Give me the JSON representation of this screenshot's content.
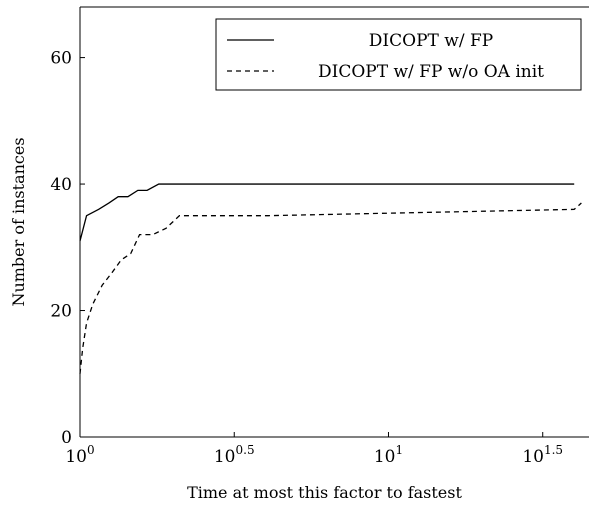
{
  "chart_data": {
    "type": "line",
    "title": "",
    "xlabel": "Time at most this factor to fastest",
    "ylabel": "Number of instances",
    "x_scale": "log10",
    "xlim": [
      1,
      44.67
    ],
    "ylim": [
      0,
      68
    ],
    "x_ticks": [
      {
        "value": 1,
        "base": "10",
        "exp": "0"
      },
      {
        "value": 3.1623,
        "base": "10",
        "exp": "0.5"
      },
      {
        "value": 10,
        "base": "10",
        "exp": "1"
      },
      {
        "value": 31.623,
        "base": "10",
        "exp": "1.5"
      }
    ],
    "y_ticks": [
      0,
      20,
      40,
      60
    ],
    "legend_position": "top-right",
    "series": [
      {
        "name": "DICOPT w/ FP",
        "style": "solid",
        "color": "#000000",
        "x": [
          1.0,
          1.05,
          1.15,
          1.24,
          1.33,
          1.43,
          1.54,
          1.65,
          1.8,
          1.91,
          2.14,
          40
        ],
        "y": [
          31,
          35,
          36,
          37,
          38,
          38,
          39,
          39,
          40,
          40,
          40,
          40
        ]
      },
      {
        "name": "DICOPT w/ FP w/o OA init",
        "style": "dashed",
        "color": "#000000",
        "x": [
          1.0,
          1.02,
          1.05,
          1.1,
          1.18,
          1.27,
          1.36,
          1.46,
          1.56,
          1.72,
          1.9,
          2.1,
          2.28,
          4.08,
          40,
          42.2
        ],
        "y": [
          10,
          14,
          18,
          21,
          24,
          26,
          28,
          29,
          32,
          32,
          33,
          35,
          35,
          35,
          36,
          37
        ]
      }
    ]
  }
}
